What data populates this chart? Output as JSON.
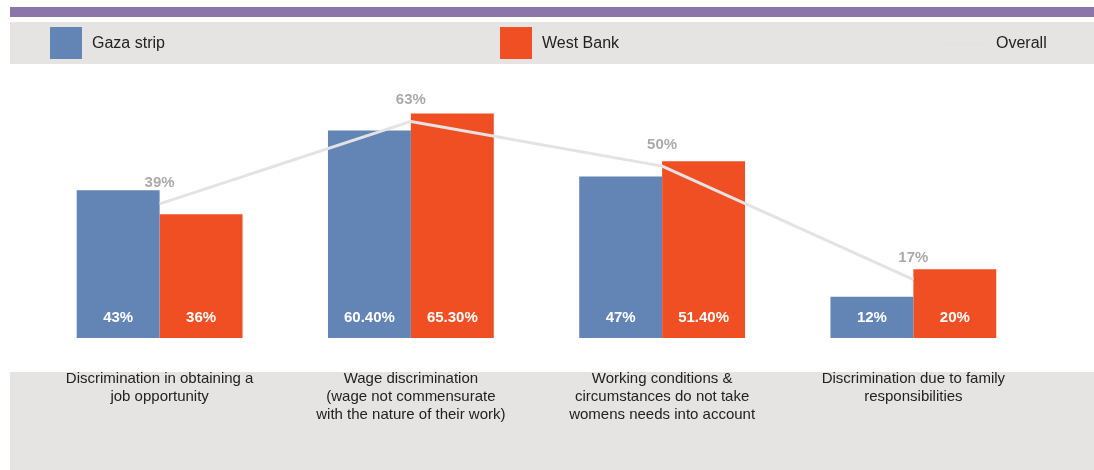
{
  "chart_data": {
    "type": "bar",
    "categories": [
      "Discrimination in obtaining a job opportunity",
      "Wage discrimination (wage not commensurate with the nature of their work)",
      "Working conditions & circumstances do not take womens needs into account",
      "Discrimination due to family responsibilities"
    ],
    "series": [
      {
        "name": "Gaza strip",
        "color": "#6285b5",
        "values": [
          43,
          60.4,
          47,
          12
        ],
        "value_labels": [
          "43%",
          "60.40%",
          "47%",
          "12%"
        ]
      },
      {
        "name": "West Bank",
        "color": "#f04e23",
        "values": [
          36,
          65.3,
          51.4,
          20
        ],
        "value_labels": [
          "36%",
          "65.30%",
          "51.40%",
          "20%"
        ]
      },
      {
        "name": "Overall",
        "type": "line",
        "color": "#e3e3e3",
        "values": [
          39,
          63,
          50,
          17
        ],
        "value_labels": [
          "39%",
          "63%",
          "50%",
          "17%"
        ]
      }
    ],
    "legend": "top",
    "grid": false,
    "tick_labels": "x",
    "marker": "none"
  }
}
